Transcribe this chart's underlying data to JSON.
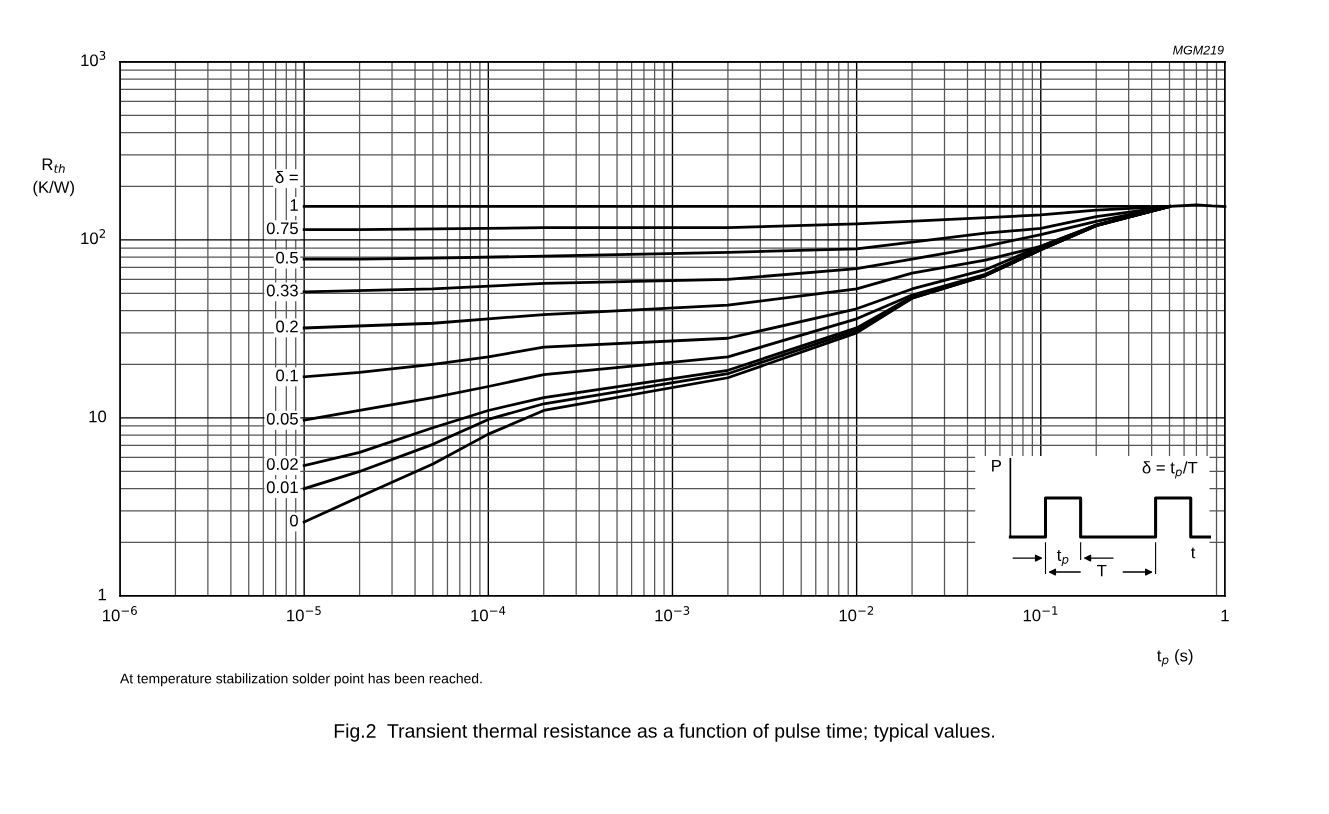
{
  "chart_data": {
    "type": "line",
    "title": "Fig.2  Transient thermal resistance as a function of pulse time; typical values.",
    "xlabel": "t$_{p}$ (s)",
    "ylabel": "R$_{th}$\n(K/W)",
    "legend_title": "δ =",
    "log": "xy",
    "grid": true,
    "legend": false,
    "marker": "none",
    "line_style": "solid",
    "xlim": [
      1e-06,
      1
    ],
    "ylim": [
      1,
      1000
    ],
    "xticks": [
      {
        "value": 1e-06,
        "label": "10$^{−6}$"
      },
      {
        "value": 1e-05,
        "label": "10$^{−5}$"
      },
      {
        "value": 0.0001,
        "label": "10$^{−4}$"
      },
      {
        "value": 0.001,
        "label": "10$^{−3}$"
      },
      {
        "value": 0.01,
        "label": "10$^{−2}$"
      },
      {
        "value": 0.1,
        "label": "10$^{−1}$"
      },
      1
    ],
    "yticks": [
      1,
      10,
      {
        "value": 100,
        "label": "10$^{2}$"
      },
      {
        "value": 1000,
        "label": "10$^{3}$"
      }
    ],
    "annotations": [
      "MGM219",
      "At temperature stabilization solder point has been reached.",
      "P",
      "δ = t$_{p}$/T",
      "t",
      "t$_{p}$",
      "T"
    ],
    "series": [
      {
        "name": "1",
        "color": "#000000",
        "x": [
          1e-05,
          0.5,
          0.7,
          0.85,
          1
        ],
        "values": [
          154,
          154,
          157,
          155,
          154
        ]
      },
      {
        "name": "0.75",
        "color": "#000000",
        "x": [
          1e-05,
          2e-05,
          0.0002,
          0.002,
          0.01,
          0.1,
          0.2,
          0.5
        ],
        "values": [
          114,
          114,
          117,
          117,
          123,
          138,
          147,
          154
        ]
      },
      {
        "name": "0.5",
        "color": "#000000",
        "x": [
          1e-05,
          2e-05,
          5e-05,
          0.0002,
          0.002,
          0.01,
          0.02,
          0.05,
          0.1,
          0.2,
          0.5
        ],
        "values": [
          78,
          78,
          79,
          81,
          85,
          89,
          97,
          109,
          116,
          135,
          154
        ]
      },
      {
        "name": "0.33",
        "color": "#000000",
        "x": [
          1e-05,
          5e-05,
          0.0002,
          0.002,
          0.01,
          0.02,
          0.05,
          0.1,
          0.2,
          0.5
        ],
        "values": [
          51,
          53,
          57,
          60,
          69,
          78,
          92,
          107,
          127,
          154
        ]
      },
      {
        "name": "0.2",
        "color": "#000000",
        "x": [
          1e-05,
          5e-05,
          0.0001,
          0.0002,
          0.002,
          0.01,
          0.02,
          0.05,
          0.1,
          0.2,
          0.5
        ],
        "values": [
          32,
          34,
          36,
          38,
          43,
          53,
          65,
          77,
          92,
          121,
          154
        ]
      },
      {
        "name": "0.1",
        "color": "#000000",
        "x": [
          1e-05,
          2e-05,
          5e-05,
          0.0001,
          0.0002,
          0.002,
          0.01,
          0.02,
          0.05,
          0.1,
          0.2,
          0.5
        ],
        "values": [
          17,
          18,
          20,
          22,
          25,
          28,
          41,
          53,
          68,
          92,
          121,
          154
        ]
      },
      {
        "name": "0.05",
        "color": "#000000",
        "x": [
          1e-05,
          2e-05,
          5e-05,
          0.0001,
          0.0002,
          0.002,
          0.01,
          0.02,
          0.05,
          0.1,
          0.2,
          0.5
        ],
        "values": [
          9.7,
          11,
          13,
          15,
          17.5,
          22,
          36,
          49,
          64,
          90,
          121,
          154
        ]
      },
      {
        "name": "0.02",
        "color": "#000000",
        "x": [
          1e-05,
          2e-05,
          5e-05,
          0.0001,
          0.0002,
          0.002,
          0.01,
          0.02,
          0.05,
          0.1,
          0.2,
          0.5
        ],
        "values": [
          5.4,
          6.4,
          8.8,
          11,
          13,
          18.5,
          32,
          48,
          63,
          88,
          120,
          154
        ]
      },
      {
        "name": "0.01",
        "color": "#000000",
        "x": [
          1e-05,
          2e-05,
          5e-05,
          0.0001,
          0.0002,
          0.002,
          0.01,
          0.02,
          0.05,
          0.1,
          0.2,
          0.5
        ],
        "values": [
          4,
          5,
          7.1,
          9.8,
          12,
          17.7,
          31,
          47,
          63,
          88,
          120,
          154
        ]
      },
      {
        "name": "0",
        "color": "#000000",
        "x": [
          1e-05,
          2e-05,
          5e-05,
          0.0001,
          0.0002,
          0.002,
          0.01,
          0.02,
          0.05,
          0.1,
          0.2,
          0.5
        ],
        "values": [
          2.6,
          3.6,
          5.5,
          8.1,
          11,
          16.8,
          30,
          47,
          63,
          88,
          120,
          154
        ]
      }
    ]
  }
}
